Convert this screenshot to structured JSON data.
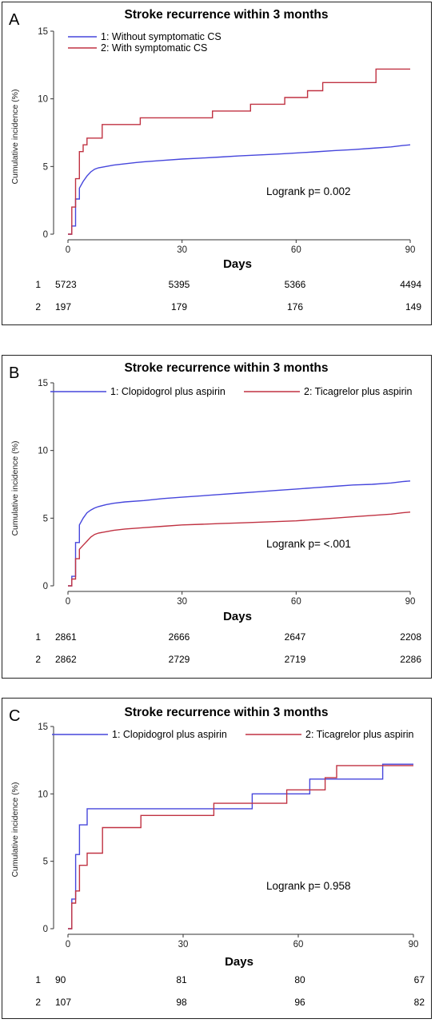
{
  "chart_data": [
    {
      "type": "line",
      "panel_label": "A",
      "title": "Stroke recurrence within 3 months",
      "ylabel": "Cumulative incidence (%)",
      "xlabel": "Days",
      "xlim": [
        0,
        90
      ],
      "ylim": [
        0,
        15
      ],
      "xticks": [
        "0",
        "30",
        "60",
        "90"
      ],
      "yticks": [
        "0",
        "5",
        "10",
        "15"
      ],
      "legend_position": "top-left",
      "annotation": "Logrank p= 0.002",
      "series": [
        {
          "name": "1: Without   symptomatic CS",
          "color": "#4646dc",
          "x": [
            0,
            1,
            1,
            2,
            2,
            3,
            3,
            4,
            5,
            6,
            7,
            8,
            9,
            10,
            12,
            15,
            18,
            20,
            25,
            30,
            35,
            40,
            45,
            50,
            55,
            60,
            65,
            70,
            75,
            80,
            85,
            88,
            90
          ],
          "y": [
            0,
            0,
            0.6,
            0.6,
            2.6,
            2.6,
            3.4,
            3.9,
            4.3,
            4.6,
            4.8,
            4.9,
            4.95,
            5.0,
            5.1,
            5.2,
            5.3,
            5.35,
            5.45,
            5.55,
            5.62,
            5.7,
            5.78,
            5.85,
            5.92,
            6.0,
            6.08,
            6.18,
            6.25,
            6.35,
            6.45,
            6.55,
            6.6
          ]
        },
        {
          "name": "2: With symptomatic CS",
          "color": "#c03242",
          "x": [
            0,
            1,
            1,
            2,
            2,
            3,
            3,
            4,
            4,
            5,
            5,
            9,
            9,
            19,
            19,
            38,
            38,
            48,
            48,
            57,
            57,
            63,
            63,
            67,
            67,
            81,
            81,
            90
          ],
          "y": [
            0,
            0,
            2.0,
            2.0,
            4.1,
            4.1,
            6.1,
            6.1,
            6.6,
            6.6,
            7.1,
            7.1,
            8.1,
            8.1,
            8.6,
            8.6,
            9.1,
            9.1,
            9.6,
            9.6,
            10.1,
            10.1,
            10.6,
            10.6,
            11.2,
            11.2,
            12.2,
            12.2
          ]
        }
      ],
      "risk_table": {
        "rows": [
          {
            "label": "1",
            "values": [
              "5723",
              "5395",
              "5366",
              "4494"
            ]
          },
          {
            "label": "2",
            "values": [
              "197",
              "179",
              "176",
              "149"
            ]
          }
        ]
      }
    },
    {
      "type": "line",
      "panel_label": "B",
      "title": "Stroke recurrence within 3 months",
      "ylabel": "Cumulative incidence (%)",
      "xlabel": "Days",
      "xlim": [
        0,
        90
      ],
      "ylim": [
        0,
        15
      ],
      "xticks": [
        "0",
        "30",
        "60",
        "90"
      ],
      "yticks": [
        "0",
        "5",
        "10",
        "15"
      ],
      "legend_position": "top",
      "annotation": "Logrank p= <.001",
      "series": [
        {
          "name": "1: Clopidogrol plus aspirin",
          "color": "#4646dc",
          "x": [
            0,
            1,
            1,
            2,
            2,
            3,
            3,
            4,
            5,
            6,
            7,
            8,
            10,
            12,
            15,
            20,
            25,
            30,
            35,
            40,
            45,
            50,
            55,
            60,
            65,
            70,
            75,
            80,
            85,
            88,
            90
          ],
          "y": [
            0,
            0,
            0.7,
            0.7,
            3.2,
            3.2,
            4.5,
            5.0,
            5.4,
            5.6,
            5.75,
            5.85,
            6.0,
            6.1,
            6.2,
            6.3,
            6.45,
            6.55,
            6.65,
            6.75,
            6.85,
            6.95,
            7.05,
            7.15,
            7.25,
            7.35,
            7.45,
            7.5,
            7.6,
            7.7,
            7.75
          ]
        },
        {
          "name": "2: Ticagrelor plus aspirin",
          "color": "#c03242",
          "x": [
            0,
            1,
            1,
            2,
            2,
            3,
            3,
            4,
            5,
            6,
            7,
            8,
            10,
            12,
            15,
            20,
            25,
            30,
            35,
            40,
            45,
            50,
            55,
            60,
            65,
            70,
            75,
            80,
            85,
            88,
            90
          ],
          "y": [
            0,
            0,
            0.5,
            0.5,
            2.0,
            2.0,
            2.7,
            3.0,
            3.3,
            3.6,
            3.8,
            3.9,
            4.0,
            4.1,
            4.2,
            4.3,
            4.4,
            4.5,
            4.55,
            4.6,
            4.65,
            4.7,
            4.75,
            4.8,
            4.9,
            5.0,
            5.1,
            5.2,
            5.3,
            5.4,
            5.45
          ]
        }
      ],
      "risk_table": {
        "rows": [
          {
            "label": "1",
            "values": [
              "2861",
              "2666",
              "2647",
              "2208"
            ]
          },
          {
            "label": "2",
            "values": [
              "2862",
              "2729",
              "2719",
              "2286"
            ]
          }
        ]
      }
    },
    {
      "type": "line",
      "panel_label": "C",
      "title": "Stroke recurrence within 3 months",
      "ylabel": "Cumulative incidence (%)",
      "xlabel": "Days",
      "xlim": [
        0,
        90
      ],
      "ylim": [
        0,
        15
      ],
      "xticks": [
        "0",
        "30",
        "60",
        "90"
      ],
      "yticks": [
        "0",
        "5",
        "10",
        "15"
      ],
      "legend_position": "top",
      "annotation": "Logrank p= 0.958",
      "series": [
        {
          "name": "1: Clopidogrol plus aspirin",
          "color": "#4646dc",
          "x": [
            0,
            1,
            1,
            2,
            2,
            3,
            3,
            5,
            5,
            48,
            48,
            63,
            63,
            82,
            82,
            90
          ],
          "y": [
            0,
            0,
            2.2,
            2.2,
            5.5,
            5.5,
            7.7,
            7.7,
            8.9,
            8.9,
            10.0,
            10.0,
            11.1,
            11.1,
            12.2,
            12.2
          ]
        },
        {
          "name": "2: Ticagrelor plus aspirin",
          "color": "#c03242",
          "x": [
            0,
            1,
            1,
            2,
            2,
            3,
            3,
            5,
            5,
            9,
            9,
            19,
            19,
            38,
            38,
            57,
            57,
            67,
            67,
            70,
            70,
            90
          ],
          "y": [
            0,
            0,
            1.9,
            1.9,
            2.8,
            2.8,
            4.7,
            4.7,
            5.6,
            5.6,
            7.5,
            7.5,
            8.4,
            8.4,
            9.3,
            9.3,
            10.3,
            10.3,
            11.2,
            11.2,
            12.1,
            12.1
          ]
        }
      ],
      "risk_table": {
        "rows": [
          {
            "label": "1",
            "values": [
              "90",
              "81",
              "80",
              "67"
            ]
          },
          {
            "label": "2",
            "values": [
              "107",
              "98",
              "96",
              "82"
            ]
          }
        ]
      }
    }
  ]
}
